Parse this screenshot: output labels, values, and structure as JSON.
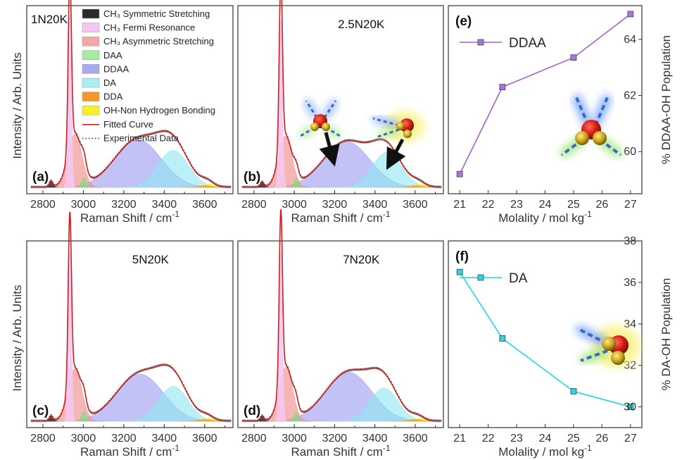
{
  "figure": {
    "ylabel_left": "Intensity / Arb. Units",
    "xlabel_raman": "Raman Shift / cm",
    "xlabel_raman_sup": "-1",
    "xlabel_molality": "Molality / mol kg",
    "xlabel_molality_sup": "-1"
  },
  "legend": [
    {
      "label": "CH₃ Symmetric Stretching",
      "color": "#2b2b2b",
      "kind": "swatch"
    },
    {
      "label": "CH₃ Fermi Resonance",
      "color": "#f6c6f0",
      "kind": "swatch"
    },
    {
      "label": "CH₃ Asymmetric Stretching",
      "color": "#f4a7a7",
      "kind": "swatch"
    },
    {
      "label": "DAA",
      "color": "#a6eaa4",
      "kind": "swatch"
    },
    {
      "label": "DDAA",
      "color": "#a9a9f2",
      "kind": "swatch"
    },
    {
      "label": "DA",
      "color": "#a8eef2",
      "kind": "swatch"
    },
    {
      "label": "DDA",
      "color": "#f5972a",
      "kind": "swatch"
    },
    {
      "label": "OH-Non Hydrogen Bonding",
      "color": "#f4f02a",
      "kind": "swatch"
    },
    {
      "label": "Fitted Curve",
      "color": "#cc1f1f",
      "kind": "line"
    },
    {
      "label": "Experimental Data",
      "color": "#333333",
      "kind": "dots"
    }
  ],
  "chart_data": [
    {
      "type": "area",
      "panel": "(a)",
      "sample": "1N20K",
      "xlim": [
        2720,
        3740
      ],
      "xticks": [
        2800,
        3000,
        3200,
        3400,
        3600
      ],
      "peaks": [
        {
          "name": "CH₃ Symmetric Stretching",
          "center": 2840,
          "amp": 0.035,
          "width": 9
        },
        {
          "name": "CH₃ Fermi Resonance",
          "center": 2933,
          "amp": 0.98,
          "width": 8
        },
        {
          "name": "CH₃ Asymmetric Stretching",
          "center": 2958,
          "amp": 0.3,
          "width": 35
        },
        {
          "name": "DAA",
          "center": 3003,
          "amp": 0.055,
          "width": 11
        },
        {
          "name": "DDAA",
          "center": 3270,
          "amp": 0.27,
          "width": 115
        },
        {
          "name": "DA",
          "center": 3445,
          "amp": 0.21,
          "width": 75
        },
        {
          "name": "DDA",
          "center": 3600,
          "amp": 0.01,
          "width": 30
        },
        {
          "name": "OH-Non Hydrogen Bonding",
          "center": 3620,
          "amp": 0.018,
          "width": 28
        }
      ]
    },
    {
      "type": "area",
      "panel": "(b)",
      "sample": "2.5N20K",
      "xlim": [
        2720,
        3740
      ],
      "xticks": [
        2800,
        3000,
        3200,
        3400,
        3600
      ],
      "peaks": [
        {
          "name": "CH₃ Symmetric Stretching",
          "center": 2840,
          "amp": 0.03,
          "width": 9
        },
        {
          "name": "CH₃ Fermi Resonance",
          "center": 2933,
          "amp": 0.96,
          "width": 8
        },
        {
          "name": "CH₃ Asymmetric Stretching",
          "center": 2955,
          "amp": 0.29,
          "width": 33
        },
        {
          "name": "DAA",
          "center": 3010,
          "amp": 0.05,
          "width": 11
        },
        {
          "name": "DDAA",
          "center": 3260,
          "amp": 0.26,
          "width": 115
        },
        {
          "name": "DA",
          "center": 3460,
          "amp": 0.2,
          "width": 72
        },
        {
          "name": "DDA",
          "center": 3600,
          "amp": 0.01,
          "width": 30
        },
        {
          "name": "OH-Non Hydrogen Bonding",
          "center": 3625,
          "amp": 0.015,
          "width": 28
        }
      ]
    },
    {
      "type": "line",
      "panel": "(e)",
      "xlabel": "Molality / mol kg⁻¹",
      "ylabel": "% DDAA-OH Population",
      "xlim": [
        20.6,
        27.4
      ],
      "ylim": [
        58.5,
        65.2
      ],
      "xticks": [
        21,
        22,
        23,
        24,
        25,
        26,
        27
      ],
      "yticks": [
        60,
        62,
        64
      ],
      "series": [
        {
          "name": "DDAA",
          "x": [
            21,
            22.5,
            25,
            27
          ],
          "values": [
            59.2,
            62.3,
            63.35,
            64.9
          ]
        }
      ],
      "color": "#a660cc",
      "marker_fill": "#a677d6"
    },
    {
      "type": "area",
      "panel": "(c)",
      "sample": "5N20K",
      "xlim": [
        2720,
        3740
      ],
      "xticks": [
        2800,
        3000,
        3200,
        3400,
        3600
      ],
      "peaks": [
        {
          "name": "CH₃ Symmetric Stretching",
          "center": 2840,
          "amp": 0.03,
          "width": 9
        },
        {
          "name": "CH₃ Fermi Resonance",
          "center": 2933,
          "amp": 0.97,
          "width": 8
        },
        {
          "name": "CH₃ Asymmetric Stretching",
          "center": 2958,
          "amp": 0.3,
          "width": 34
        },
        {
          "name": "DAA",
          "center": 3003,
          "amp": 0.055,
          "width": 11
        },
        {
          "name": "DDAA",
          "center": 3280,
          "amp": 0.27,
          "width": 115
        },
        {
          "name": "DA",
          "center": 3445,
          "amp": 0.2,
          "width": 72
        },
        {
          "name": "DDA",
          "center": 3600,
          "amp": 0.01,
          "width": 30
        },
        {
          "name": "OH-Non Hydrogen Bonding",
          "center": 3620,
          "amp": 0.015,
          "width": 28
        }
      ]
    },
    {
      "type": "area",
      "panel": "(d)",
      "sample": "7N20K",
      "xlim": [
        2720,
        3740
      ],
      "xticks": [
        2800,
        3000,
        3200,
        3400,
        3600
      ],
      "peaks": [
        {
          "name": "CH₃ Symmetric Stretching",
          "center": 2840,
          "amp": 0.03,
          "width": 9
        },
        {
          "name": "CH₃ Fermi Resonance",
          "center": 2933,
          "amp": 0.98,
          "width": 8
        },
        {
          "name": "CH₃ Asymmetric Stretching",
          "center": 2958,
          "amp": 0.31,
          "width": 33
        },
        {
          "name": "DAA",
          "center": 3008,
          "amp": 0.05,
          "width": 11
        },
        {
          "name": "DDAA",
          "center": 3270,
          "amp": 0.28,
          "width": 115
        },
        {
          "name": "DA",
          "center": 3445,
          "amp": 0.19,
          "width": 70
        },
        {
          "name": "DDA",
          "center": 3600,
          "amp": 0.01,
          "width": 30
        },
        {
          "name": "OH-Non Hydrogen Bonding",
          "center": 3620,
          "amp": 0.015,
          "width": 28
        }
      ]
    },
    {
      "type": "line",
      "panel": "(f)",
      "xlabel": "Molality / mol kg⁻¹",
      "ylabel": "% DA-OH Population",
      "xlim": [
        20.6,
        27.4
      ],
      "ylim": [
        29.0,
        38.0
      ],
      "xticks": [
        21,
        22,
        23,
        24,
        25,
        26,
        27
      ],
      "yticks": [
        30,
        32,
        34,
        36,
        38
      ],
      "series": [
        {
          "name": "DA",
          "x": [
            21,
            22.5,
            25,
            27
          ],
          "values": [
            36.5,
            33.3,
            30.75,
            30.0
          ]
        }
      ],
      "color": "#1fd7e0",
      "marker_fill": "#2ad6e0"
    }
  ]
}
